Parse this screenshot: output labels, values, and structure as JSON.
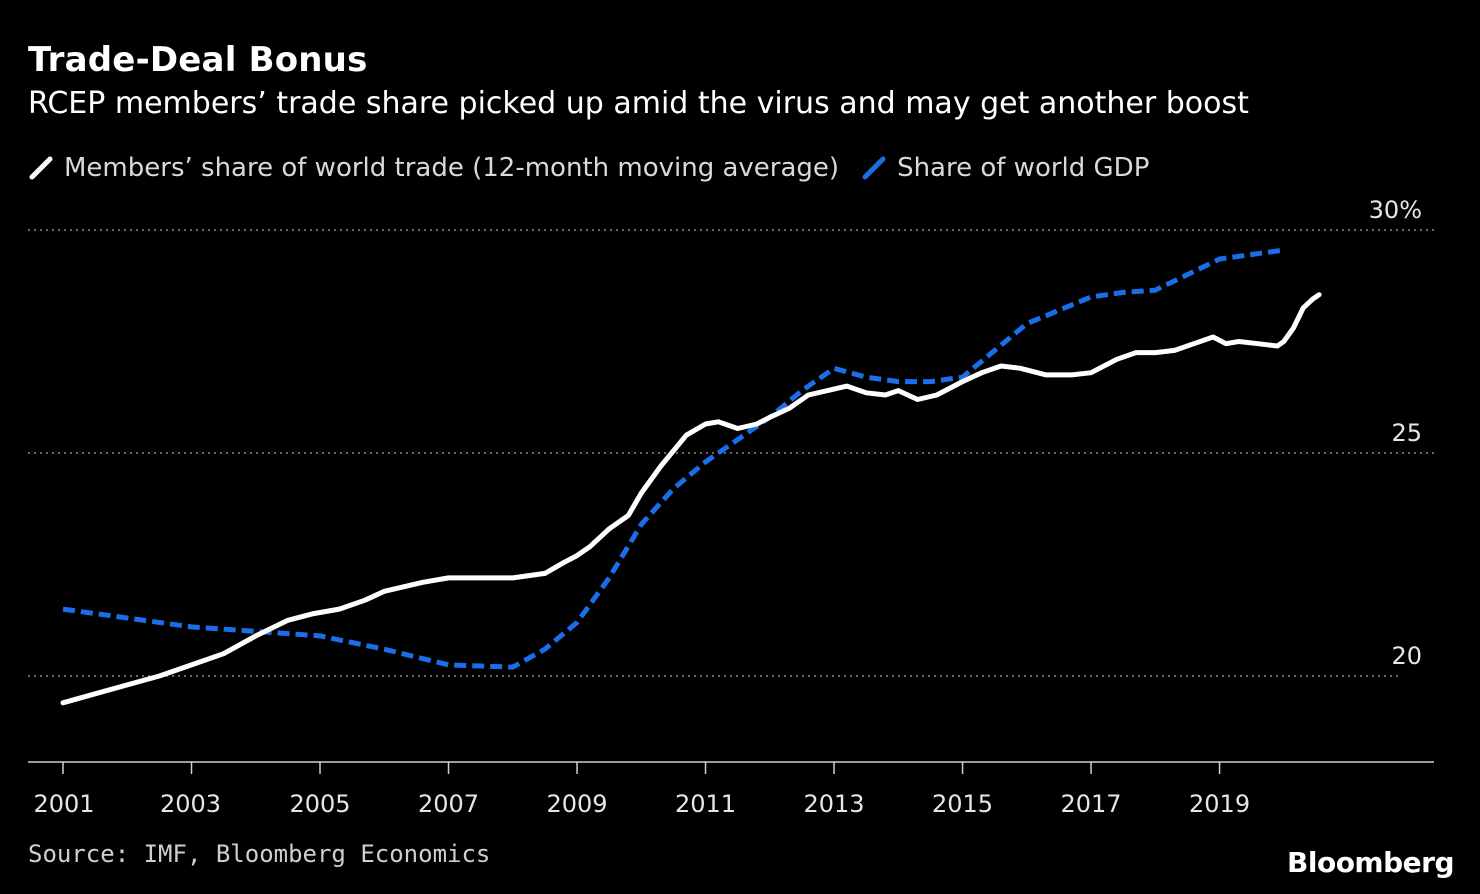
{
  "header": {
    "title": "Trade-Deal Bonus",
    "subtitle": "RCEP members’ trade share picked up amid the virus and may get another boost"
  },
  "legend": {
    "items": [
      {
        "label": "Members’ share of world trade (12-month moving average)",
        "color": "#ffffff",
        "style": "solid"
      },
      {
        "label": "Share of world GDP",
        "color": "#1a6ee8",
        "style": "dashed"
      }
    ]
  },
  "footer": {
    "source": "Source: IMF, Bloomberg Economics",
    "brand": "Bloomberg"
  },
  "chart_data": {
    "type": "line",
    "xlim": [
      2001,
      2020.75
    ],
    "ylim": [
      18.1,
      30
    ],
    "y_ticks": [
      {
        "value": 30,
        "label": "30%"
      },
      {
        "value": 25,
        "label": "25"
      },
      {
        "value": 20,
        "label": "20"
      }
    ],
    "x_ticks": [
      "2001",
      "2003",
      "2005",
      "2007",
      "2009",
      "2011",
      "2013",
      "2015",
      "2017",
      "2019"
    ],
    "grid": true,
    "legend_position": "top-left",
    "series": [
      {
        "name": "Members’ share of world trade (12-month moving average)",
        "color": "#ffffff",
        "style": "solid",
        "x": [
          2001.0,
          2001.5,
          2002.0,
          2002.5,
          2003.0,
          2003.5,
          2004.0,
          2004.5,
          2004.9,
          2005.3,
          2005.7,
          2006.0,
          2006.3,
          2006.6,
          2007.0,
          2007.5,
          2008.0,
          2008.5,
          2008.8,
          2009.0,
          2009.2,
          2009.5,
          2009.8,
          2010.0,
          2010.3,
          2010.7,
          2011.0,
          2011.2,
          2011.5,
          2011.8,
          2012.0,
          2012.3,
          2012.6,
          2012.9,
          2013.2,
          2013.5,
          2013.8,
          2014.0,
          2014.3,
          2014.6,
          2015.0,
          2015.3,
          2015.6,
          2015.9,
          2016.3,
          2016.7,
          2017.0,
          2017.4,
          2017.7,
          2018.0,
          2018.3,
          2018.6,
          2018.9,
          2019.1,
          2019.3,
          2019.6,
          2019.9,
          2020.0,
          2020.15,
          2020.3,
          2020.45,
          2020.55
        ],
        "values": [
          19.4,
          19.6,
          19.8,
          20.0,
          20.25,
          20.5,
          20.9,
          21.25,
          21.4,
          21.5,
          21.7,
          21.9,
          22.0,
          22.1,
          22.2,
          22.2,
          22.2,
          22.3,
          22.55,
          22.7,
          22.9,
          23.3,
          23.6,
          24.1,
          24.7,
          25.4,
          25.65,
          25.7,
          25.55,
          25.65,
          25.8,
          26.0,
          26.3,
          26.4,
          26.5,
          26.35,
          26.3,
          26.4,
          26.2,
          26.3,
          26.6,
          26.8,
          26.95,
          26.9,
          26.75,
          26.75,
          26.8,
          27.1,
          27.25,
          27.25,
          27.3,
          27.45,
          27.6,
          27.45,
          27.5,
          27.45,
          27.4,
          27.5,
          27.8,
          28.25,
          28.45,
          28.55
        ]
      },
      {
        "name": "Share of world GDP",
        "color": "#1a6ee8",
        "style": "dashed",
        "x": [
          2001.0,
          2002.0,
          2003.0,
          2004.0,
          2005.0,
          2006.0,
          2007.0,
          2008.0,
          2008.5,
          2009.0,
          2009.5,
          2010.0,
          2010.5,
          2011.0,
          2011.5,
          2012.0,
          2012.5,
          2013.0,
          2013.5,
          2014.0,
          2014.5,
          2015.0,
          2015.5,
          2016.0,
          2016.5,
          2017.0,
          2017.5,
          2018.0,
          2018.5,
          2019.0,
          2019.5,
          2020.0
        ],
        "values": [
          21.5,
          21.3,
          21.1,
          21.0,
          20.9,
          20.6,
          20.25,
          20.2,
          20.6,
          21.2,
          22.2,
          23.4,
          24.2,
          24.8,
          25.3,
          25.8,
          26.4,
          26.9,
          26.7,
          26.6,
          26.6,
          26.7,
          27.3,
          27.9,
          28.2,
          28.5,
          28.6,
          28.65,
          29.0,
          29.35,
          29.45,
          29.55
        ]
      }
    ]
  }
}
